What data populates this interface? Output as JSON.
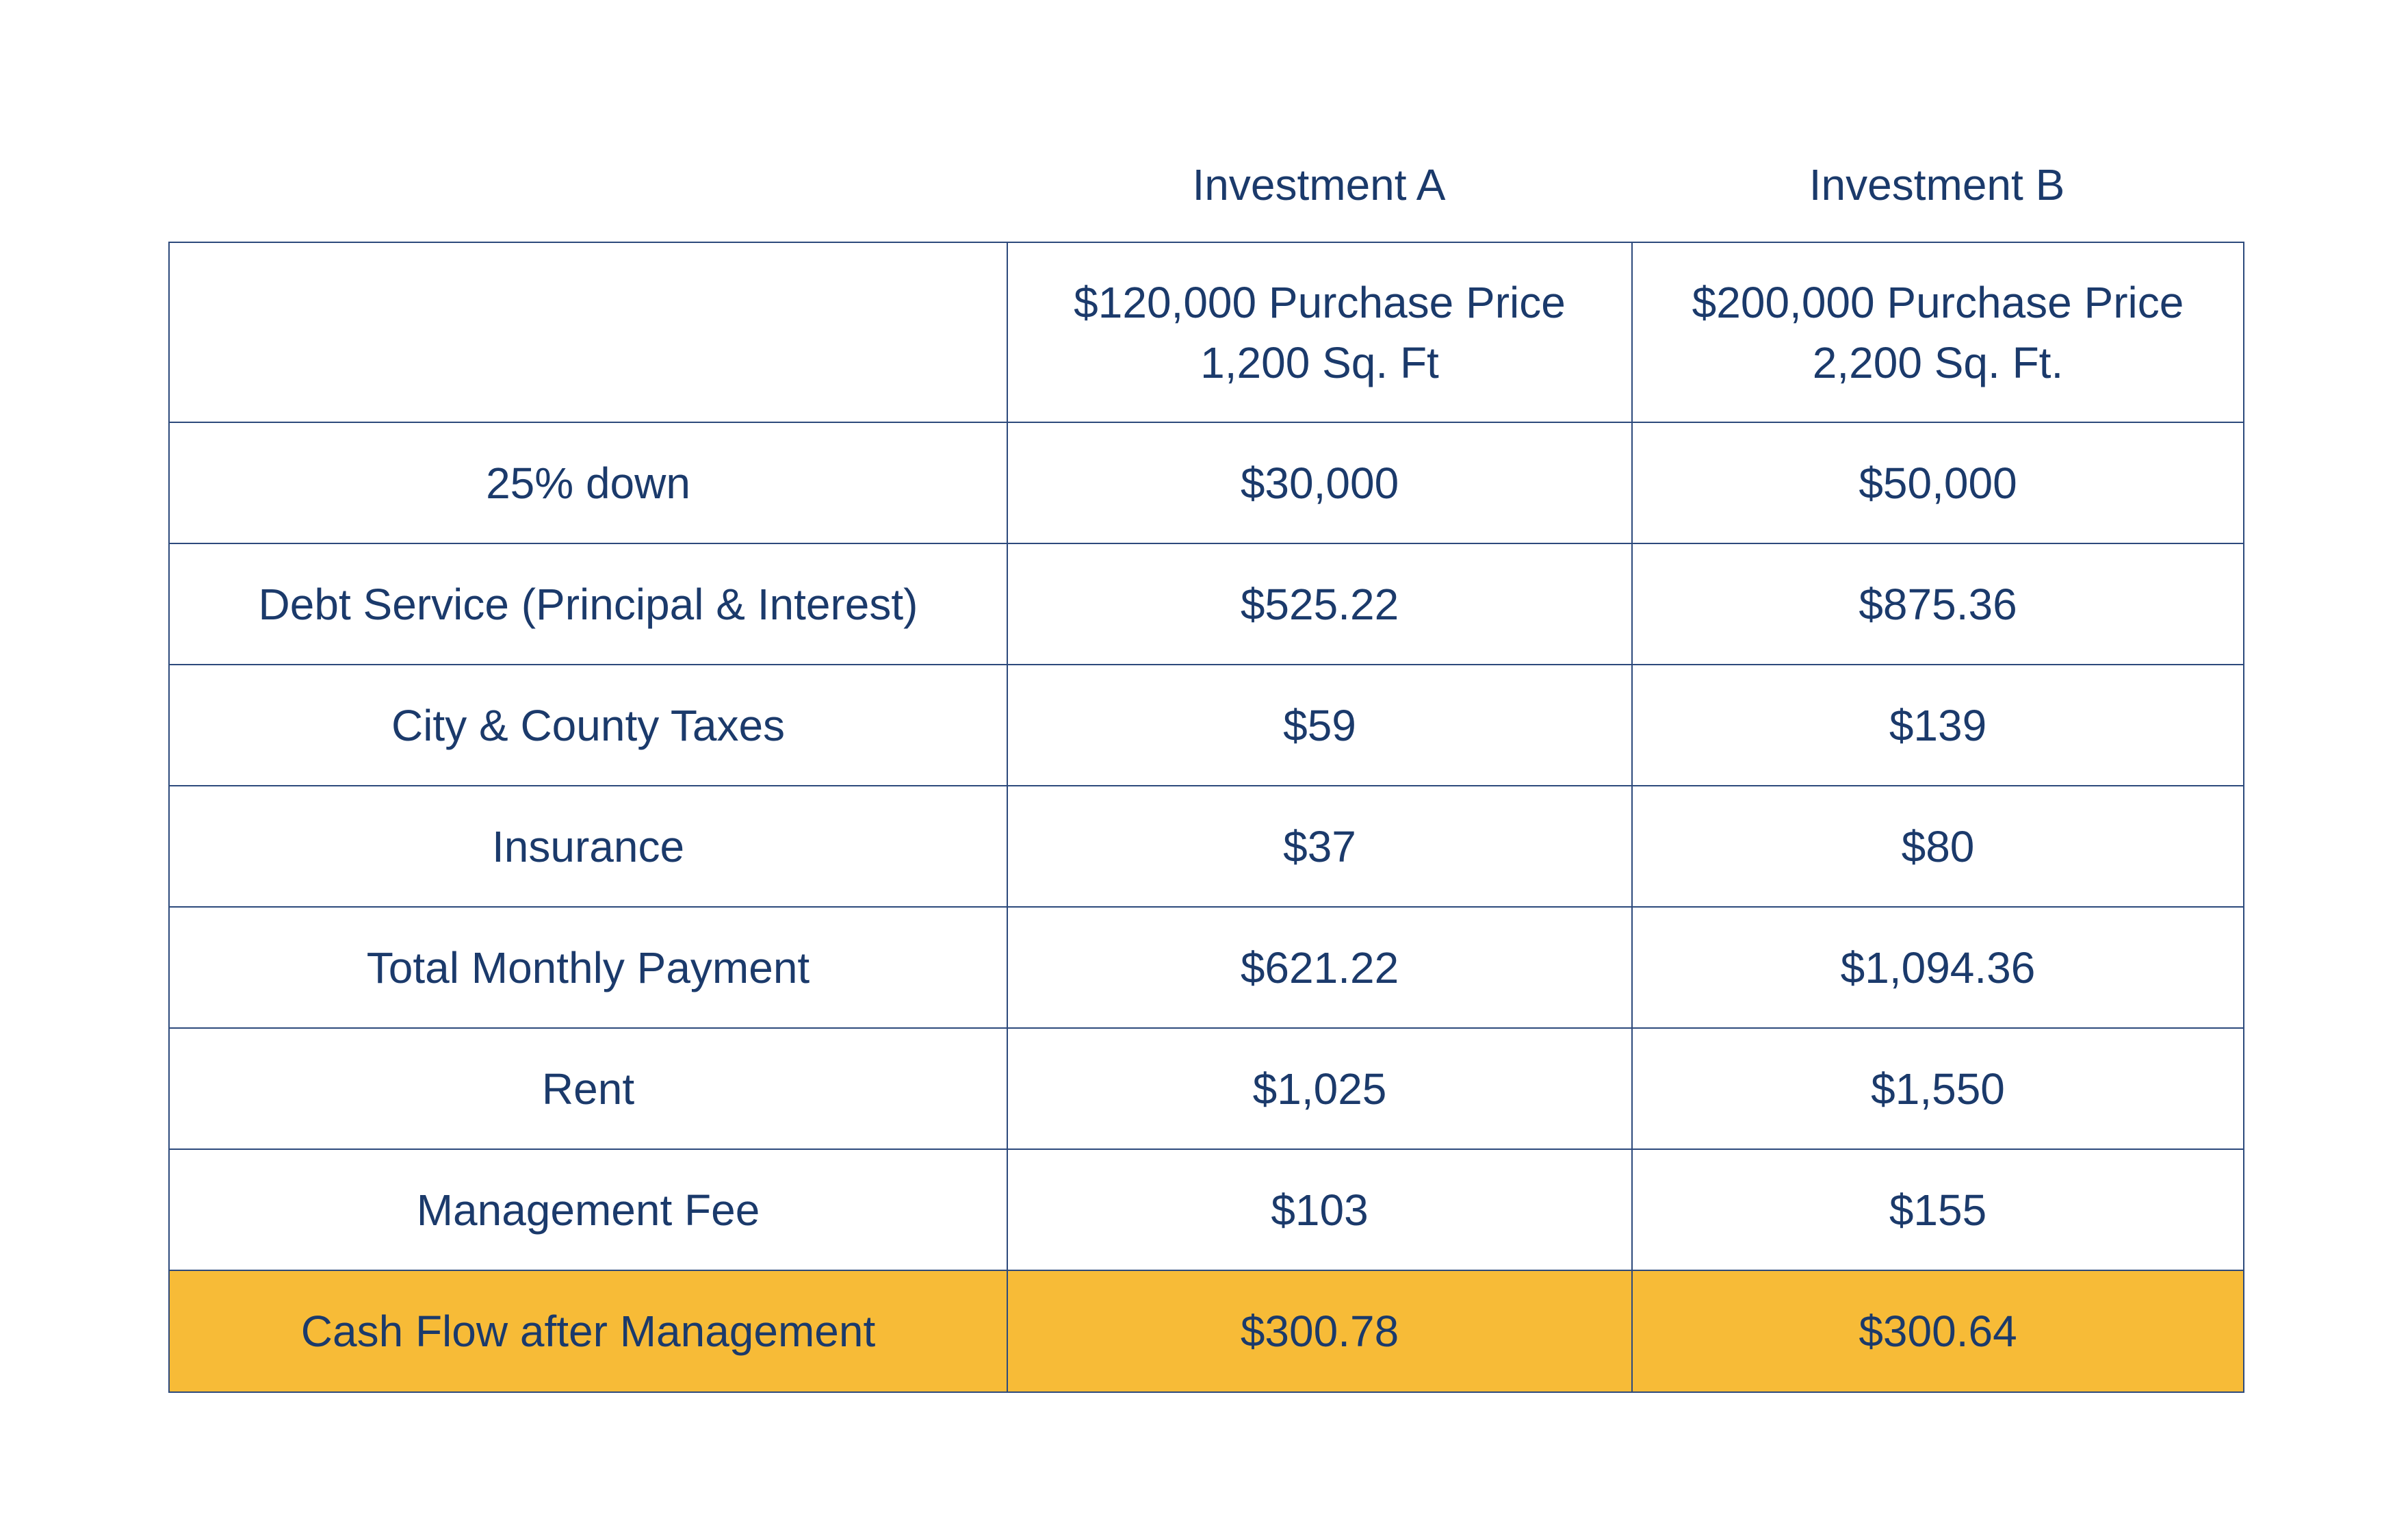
{
  "headers": {
    "investment_a": "Investment A",
    "investment_b": "Investment B"
  },
  "property": {
    "a_price": "$120,000 Purchase Price",
    "a_size": "1,200 Sq. Ft",
    "b_price": "$200,000 Purchase Price",
    "b_size": "2,200 Sq. Ft."
  },
  "rows": [
    {
      "label": "25% down",
      "a": "$30,000",
      "b": "$50,000"
    },
    {
      "label": "Debt Service (Principal & Interest)",
      "a": "$525.22",
      "b": "$875.36"
    },
    {
      "label": "City & County Taxes",
      "a": "$59",
      "b": "$139"
    },
    {
      "label": "Insurance",
      "a": "$37",
      "b": "$80"
    },
    {
      "label": "Total Monthly Payment",
      "a": "$621.22",
      "b": "$1,094.36"
    },
    {
      "label": "Rent",
      "a": "$1,025",
      "b": "$1,550"
    },
    {
      "label": "Management Fee",
      "a": "$103",
      "b": "$155"
    }
  ],
  "total": {
    "label": "Cash Flow after Management",
    "a": "$300.78",
    "b": "$300.64"
  },
  "colors": {
    "text": "#1b3a6b",
    "border": "#2d4a7c",
    "highlight": "#f7bb37",
    "background": "#ffffff"
  }
}
